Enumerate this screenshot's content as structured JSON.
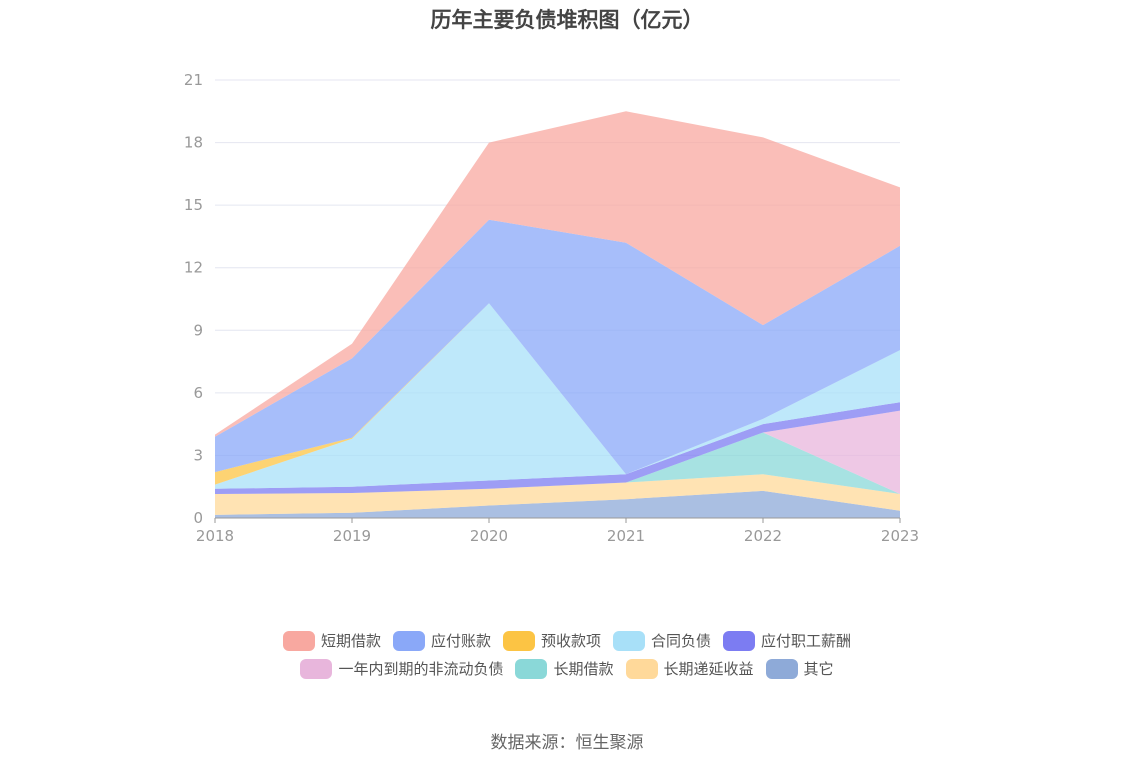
{
  "title": "历年主要负债堆积图（亿元）",
  "source": "数据来源：恒生聚源",
  "chart_data": {
    "type": "area",
    "stacked": true,
    "title": "历年主要负债堆积图（亿元）",
    "xlabel": "",
    "ylabel": "",
    "categories": [
      "2018",
      "2019",
      "2020",
      "2021",
      "2022",
      "2023"
    ],
    "ylim": [
      0,
      21
    ],
    "yticks": [
      0,
      3,
      6,
      9,
      12,
      15,
      18,
      21
    ],
    "grid": true,
    "legend_position": "bottom",
    "series": [
      {
        "name": "其它",
        "color": "#8eaad8",
        "values": [
          0.15,
          0.25,
          0.6,
          0.9,
          1.3,
          0.35
        ]
      },
      {
        "name": "长期递延收益",
        "color": "#ffd99a",
        "values": [
          1.0,
          0.95,
          0.8,
          0.8,
          0.8,
          0.8
        ]
      },
      {
        "name": "长期借款",
        "color": "#8ad8d8",
        "values": [
          0,
          0,
          0,
          0,
          2.0,
          0
        ]
      },
      {
        "name": "一年内到期的非流动负债",
        "color": "#e8b6dc",
        "values": [
          0,
          0,
          0,
          0,
          0,
          4.0
        ]
      },
      {
        "name": "应付职工薪酬",
        "color": "#7c7cf2",
        "values": [
          0.25,
          0.3,
          0.4,
          0.4,
          0.4,
          0.4
        ]
      },
      {
        "name": "合同负债",
        "color": "#a8e0f8",
        "values": [
          0.2,
          2.3,
          8.5,
          0,
          0.25,
          2.5
        ]
      },
      {
        "name": "预收款项",
        "color": "#fcc444",
        "values": [
          0.6,
          0.05,
          0,
          0,
          0,
          0
        ]
      },
      {
        "name": "应付账款",
        "color": "#8aa8f8",
        "values": [
          1.7,
          3.8,
          4.0,
          11.1,
          4.5,
          5.0
        ]
      },
      {
        "name": "短期借款",
        "color": "#f8a8a0",
        "values": [
          0.1,
          0.7,
          3.7,
          6.3,
          9.0,
          2.8
        ]
      }
    ]
  },
  "legend": {
    "rows": [
      [
        {
          "label": "短期借款",
          "color": "#f8a8a0"
        },
        {
          "label": "应付账款",
          "color": "#8aa8f8"
        },
        {
          "label": "预收款项",
          "color": "#fcc444"
        },
        {
          "label": "合同负债",
          "color": "#a8e0f8"
        },
        {
          "label": "应付职工薪酬",
          "color": "#7c7cf2"
        }
      ],
      [
        {
          "label": "一年内到期的非流动负债",
          "color": "#e8b6dc"
        },
        {
          "label": "长期借款",
          "color": "#8ad8d8"
        },
        {
          "label": "长期递延收益",
          "color": "#ffd99a"
        },
        {
          "label": "其它",
          "color": "#8eaad8"
        }
      ]
    ]
  }
}
